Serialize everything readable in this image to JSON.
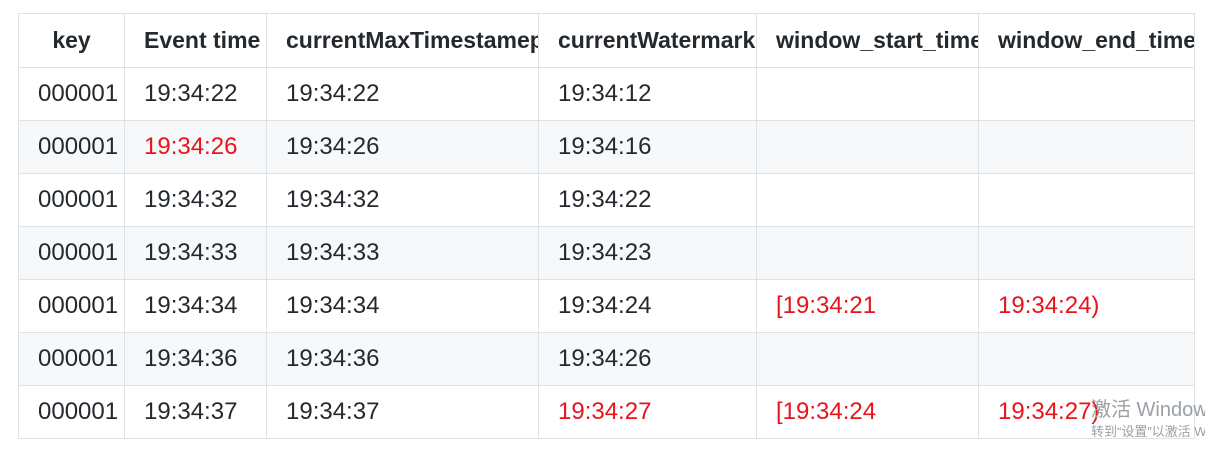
{
  "table": {
    "headers": [
      "key",
      "Event time",
      "currentMaxTimestamep",
      "currentWatermark",
      "window_start_time",
      "window_end_time"
    ],
    "rows": [
      [
        "000001",
        "19:34:22",
        "19:34:22",
        "19:34:12",
        "",
        ""
      ],
      [
        "000001",
        "19:34:26",
        "19:34:26",
        "19:34:16",
        "",
        ""
      ],
      [
        "000001",
        "19:34:32",
        "19:34:32",
        "19:34:22",
        "",
        ""
      ],
      [
        "000001",
        "19:34:33",
        "19:34:33",
        "19:34:23",
        "",
        ""
      ],
      [
        "000001",
        "19:34:34",
        "19:34:34",
        "19:34:24",
        "[19:34:21",
        "19:34:24)"
      ],
      [
        "000001",
        "19:34:36",
        "19:34:36",
        "19:34:26",
        "",
        ""
      ],
      [
        "000001",
        "19:34:37",
        "19:34:37",
        "19:34:27",
        "[19:34:24",
        "19:34:27)"
      ]
    ],
    "highlight_color": "#e8141b"
  },
  "watermark": {
    "title": "激活 Windows",
    "subtitle": "转到“设置”以激活 Windows。"
  }
}
